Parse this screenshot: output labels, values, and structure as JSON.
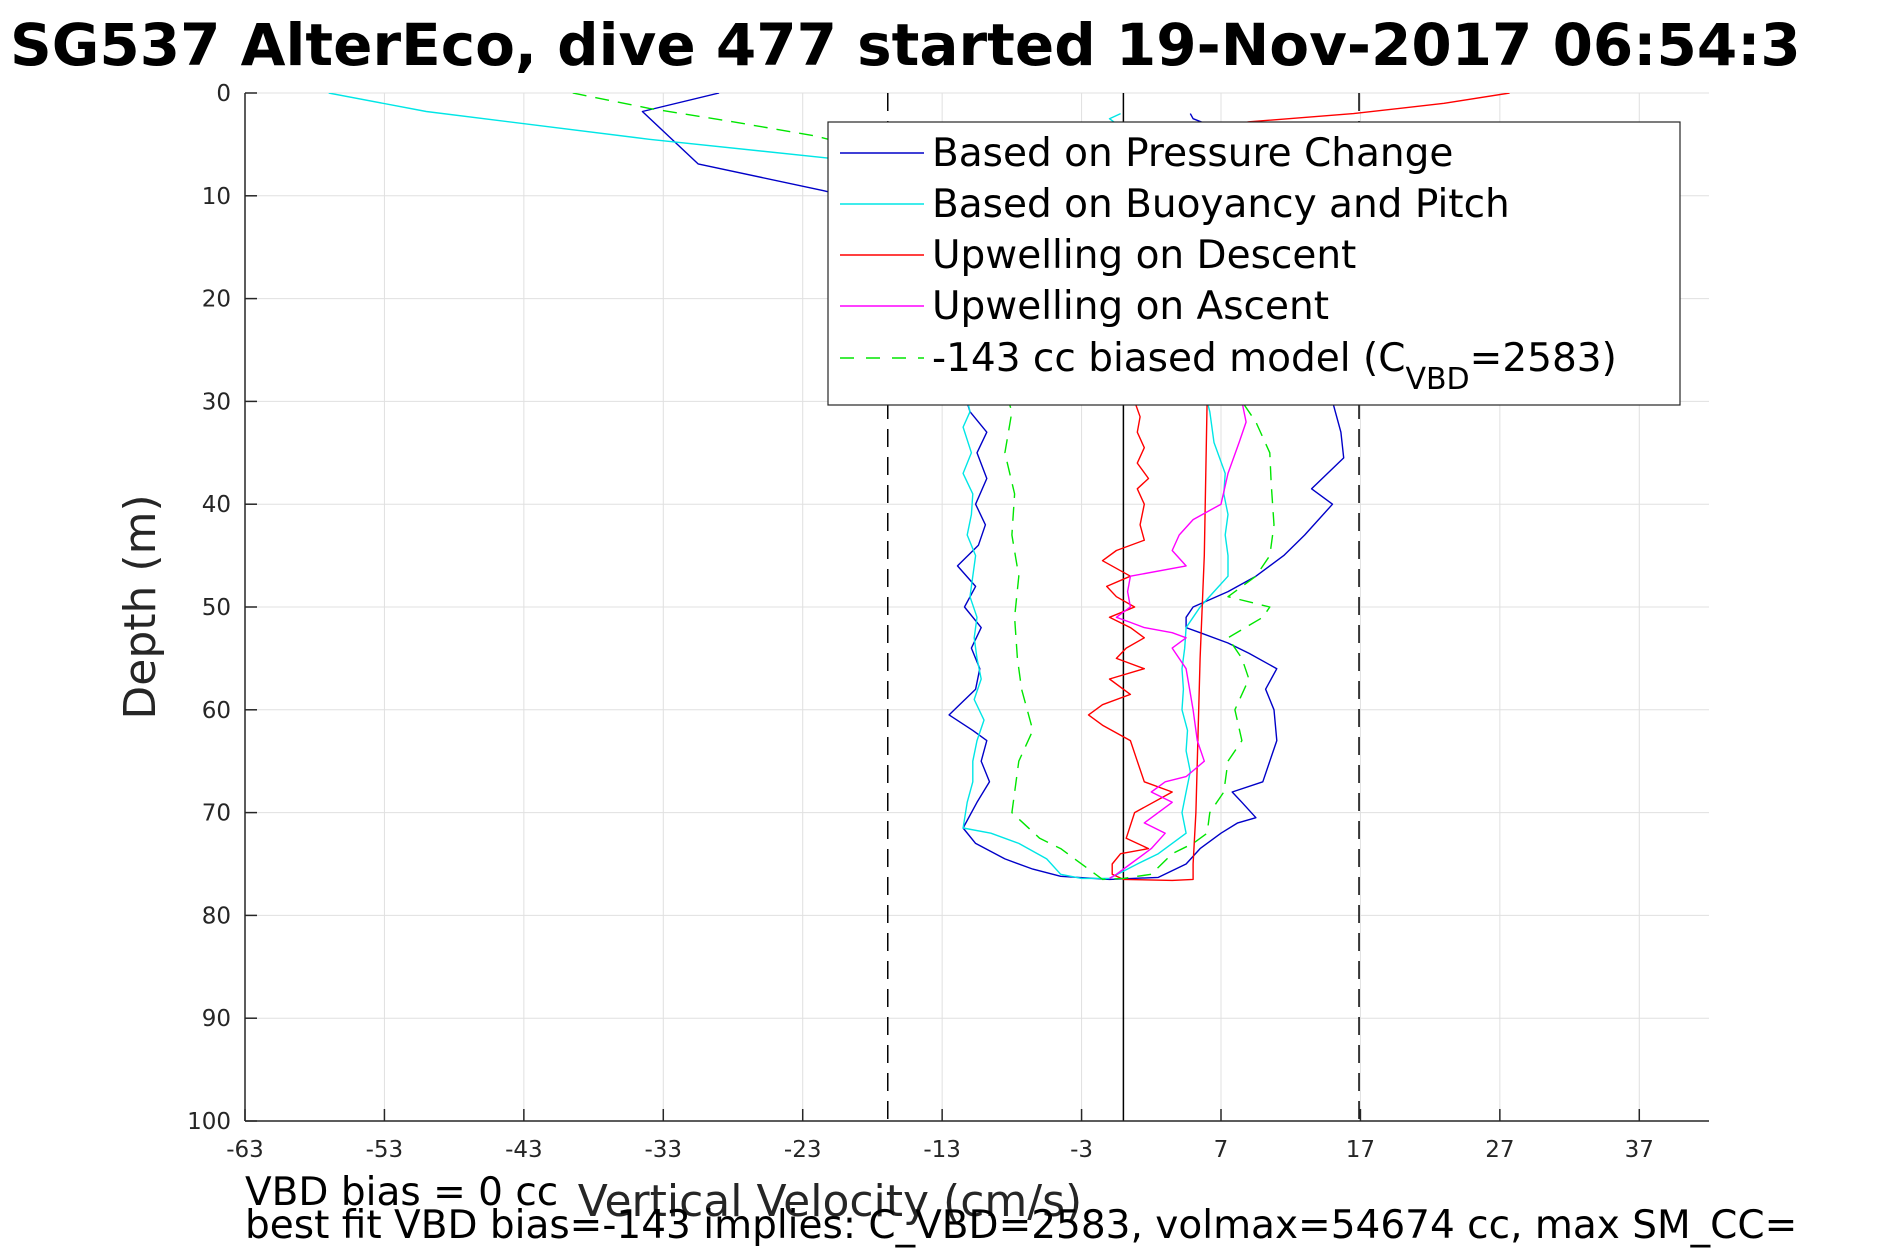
{
  "chart_data": {
    "type": "line",
    "title": "SG537 AlterEco, dive 477 started 19-Nov-2017 06:54:3",
    "xlabel": "Vertical Velocity (cm/s)",
    "ylabel": "Depth (m)",
    "xlim": [
      -63,
      42
    ],
    "ylim": [
      0,
      100
    ],
    "y_reversed": true,
    "grid": true,
    "legend_position": "top-right",
    "xticks": [
      -63,
      -53,
      -43,
      -33,
      -23,
      -13,
      -3,
      7,
      17,
      27,
      37
    ],
    "yticks": [
      0,
      10,
      20,
      30,
      40,
      50,
      60,
      70,
      80,
      90,
      100
    ],
    "reference_lines": [
      {
        "x": -16.9,
        "style": "dashed",
        "color": "#000000"
      },
      {
        "x": 0.0,
        "style": "solid",
        "color": "#000000"
      },
      {
        "x": 16.9,
        "style": "dashed",
        "color": "#000000"
      }
    ],
    "series": [
      {
        "name": "Based on Pressure Change",
        "color": "#0000c8",
        "dash": false,
        "points": [
          [
            -29.0,
            0
          ],
          [
            -34.5,
            1.8
          ],
          [
            -30.5,
            6.9
          ],
          [
            -21.5,
            9.5
          ],
          [
            -15.5,
            11.5
          ],
          [
            -11.0,
            31.0
          ],
          [
            -9.8,
            33.0
          ],
          [
            -10.5,
            35.0
          ],
          [
            -9.8,
            37.5
          ],
          [
            -10.6,
            40.0
          ],
          [
            -9.9,
            42.0
          ],
          [
            -10.4,
            44.0
          ],
          [
            -11.9,
            46.0
          ],
          [
            -10.6,
            48.0
          ],
          [
            -11.4,
            50.0
          ],
          [
            -10.2,
            52.0
          ],
          [
            -10.9,
            54.0
          ],
          [
            -10.3,
            56.0
          ],
          [
            -10.6,
            58.0
          ],
          [
            -12.5,
            60.5
          ],
          [
            -10.8,
            62.0
          ],
          [
            -9.8,
            63.0
          ],
          [
            -10.2,
            65.0
          ],
          [
            -9.6,
            67.0
          ],
          [
            -10.5,
            69.0
          ],
          [
            -11.5,
            71.5
          ],
          [
            -10.6,
            73.0
          ],
          [
            -8.5,
            74.5
          ],
          [
            -6.5,
            75.5
          ],
          [
            -4.5,
            76.2
          ],
          [
            -1.0,
            76.5
          ],
          [
            2.5,
            76.3
          ],
          [
            4.5,
            75.0
          ],
          [
            5.5,
            73.5
          ],
          [
            7.0,
            72.0
          ],
          [
            8.2,
            71.0
          ],
          [
            9.5,
            70.5
          ],
          [
            8.5,
            69.0
          ],
          [
            7.8,
            68.0
          ],
          [
            10.0,
            67.0
          ],
          [
            10.5,
            65.0
          ],
          [
            11.0,
            63.0
          ],
          [
            10.8,
            60.0
          ],
          [
            10.2,
            58.0
          ],
          [
            11.0,
            56.0
          ],
          [
            9.0,
            54.5
          ],
          [
            7.5,
            53.5
          ],
          [
            5.5,
            52.5
          ],
          [
            4.5,
            52.0
          ],
          [
            4.5,
            51.0
          ],
          [
            5.0,
            50.0
          ],
          [
            7.5,
            48.5
          ],
          [
            9.5,
            47.0
          ],
          [
            11.5,
            45.0
          ],
          [
            13.0,
            43.0
          ],
          [
            15.0,
            40.0
          ],
          [
            13.5,
            38.5
          ],
          [
            15.8,
            35.5
          ],
          [
            15.6,
            33.0
          ],
          [
            15.0,
            30.0
          ],
          [
            14.5,
            20.0
          ],
          [
            11.5,
            6.0
          ],
          [
            5.0,
            2.5
          ],
          [
            4.8,
            2.0
          ]
        ]
      },
      {
        "name": "Based on Buoyancy and Pitch",
        "color": "#00e6e6",
        "dash": false,
        "points": [
          [
            -57.0,
            0
          ],
          [
            -50.0,
            1.8
          ],
          [
            -34.0,
            4.5
          ],
          [
            -20.0,
            6.5
          ],
          [
            -14.5,
            11.0
          ],
          [
            -11.0,
            31.0
          ],
          [
            -11.5,
            32.5
          ],
          [
            -10.9,
            35.0
          ],
          [
            -11.5,
            37.0
          ],
          [
            -10.8,
            39.0
          ],
          [
            -10.9,
            41.0
          ],
          [
            -11.2,
            43.0
          ],
          [
            -10.6,
            45.0
          ],
          [
            -10.8,
            47.0
          ],
          [
            -11.0,
            49.0
          ],
          [
            -10.5,
            51.0
          ],
          [
            -10.7,
            53.0
          ],
          [
            -10.5,
            55.0
          ],
          [
            -10.2,
            57.0
          ],
          [
            -10.7,
            59.0
          ],
          [
            -10.0,
            61.0
          ],
          [
            -10.5,
            63.0
          ],
          [
            -10.8,
            65.0
          ],
          [
            -10.8,
            67.0
          ],
          [
            -11.2,
            69.0
          ],
          [
            -11.5,
            71.5
          ],
          [
            -9.5,
            72.0
          ],
          [
            -7.5,
            73.0
          ],
          [
            -5.5,
            74.5
          ],
          [
            -4.5,
            76.0
          ],
          [
            -3.0,
            76.4
          ],
          [
            -1.0,
            76.4
          ],
          [
            1.0,
            75.0
          ],
          [
            2.5,
            74.0
          ],
          [
            3.5,
            73.0
          ],
          [
            4.5,
            72.0
          ],
          [
            4.2,
            70.0
          ],
          [
            4.5,
            68.0
          ],
          [
            4.8,
            66.0
          ],
          [
            4.5,
            64.0
          ],
          [
            4.6,
            62.0
          ],
          [
            4.2,
            60.0
          ],
          [
            4.3,
            58.0
          ],
          [
            4.2,
            56.0
          ],
          [
            4.4,
            54.0
          ],
          [
            4.5,
            52.0
          ],
          [
            5.0,
            51.0
          ],
          [
            5.5,
            50.0
          ],
          [
            6.5,
            48.5
          ],
          [
            7.5,
            47.0
          ],
          [
            7.5,
            45.0
          ],
          [
            7.3,
            43.0
          ],
          [
            7.5,
            41.0
          ],
          [
            7.2,
            39.0
          ],
          [
            7.3,
            37.0
          ],
          [
            6.5,
            34.0
          ],
          [
            6.2,
            31.0
          ],
          [
            6.0,
            30.0
          ],
          [
            5.0,
            20.0
          ],
          [
            2.5,
            10.0
          ],
          [
            0.0,
            3.5
          ],
          [
            -1.0,
            2.5
          ],
          [
            -0.2,
            2.0
          ]
        ]
      },
      {
        "name": "Upwelling on Descent",
        "color": "#ff0000",
        "dash": false,
        "points": [
          [
            27.7,
            0
          ],
          [
            23.0,
            1.0
          ],
          [
            16.5,
            2.0
          ],
          [
            9.0,
            2.8
          ],
          [
            6.4,
            3.5
          ],
          [
            6.0,
            30.0
          ],
          [
            5.8,
            45.0
          ],
          [
            5.5,
            55.0
          ],
          [
            5.3,
            65.0
          ],
          [
            5.2,
            70.0
          ],
          [
            5.0,
            75.0
          ],
          [
            5.0,
            76.5
          ],
          [
            3.5,
            76.6
          ],
          [
            0.0,
            76.5
          ],
          [
            -0.8,
            76.0
          ],
          [
            -0.8,
            75.0
          ],
          [
            -0.2,
            74.0
          ],
          [
            1.8,
            73.5
          ],
          [
            0.2,
            72.5
          ],
          [
            0.8,
            70.0
          ],
          [
            3.5,
            68.0
          ],
          [
            1.5,
            67.0
          ],
          [
            1.0,
            65.0
          ],
          [
            0.5,
            63.0
          ],
          [
            -1.5,
            61.5
          ],
          [
            -2.5,
            60.5
          ],
          [
            -1.5,
            59.5
          ],
          [
            0.5,
            58.5
          ],
          [
            -1.0,
            57.0
          ],
          [
            1.5,
            56.0
          ],
          [
            -0.5,
            55.0
          ],
          [
            0.2,
            54.0
          ],
          [
            1.5,
            53.0
          ],
          [
            0.5,
            52.0
          ],
          [
            -1.0,
            51.0
          ],
          [
            0.8,
            50.0
          ],
          [
            -0.5,
            49.0
          ],
          [
            -1.2,
            48.0
          ],
          [
            0.5,
            47.0
          ],
          [
            -1.5,
            45.5
          ],
          [
            -0.5,
            44.5
          ],
          [
            1.5,
            43.5
          ],
          [
            1.2,
            42.0
          ],
          [
            1.5,
            40.0
          ],
          [
            1.0,
            38.5
          ],
          [
            1.8,
            37.5
          ],
          [
            1.0,
            36.0
          ],
          [
            1.5,
            34.5
          ],
          [
            1.0,
            33.0
          ],
          [
            1.2,
            31.5
          ],
          [
            0.8,
            30.0
          ]
        ]
      },
      {
        "name": "Upwelling on Ascent",
        "color": "#ff00ff",
        "dash": false,
        "points": [
          [
            8.5,
            30.0
          ],
          [
            8.8,
            32.0
          ],
          [
            8.3,
            34.0
          ],
          [
            7.5,
            37.0
          ],
          [
            7.0,
            40.0
          ],
          [
            5.0,
            41.5
          ],
          [
            4.0,
            43.0
          ],
          [
            3.5,
            44.5
          ],
          [
            4.5,
            46.0
          ],
          [
            0.5,
            47.0
          ],
          [
            0.3,
            48.5
          ],
          [
            0.5,
            50.0
          ],
          [
            0.0,
            50.5
          ],
          [
            -0.5,
            51.0
          ],
          [
            0.5,
            51.5
          ],
          [
            1.5,
            52.0
          ],
          [
            3.5,
            52.5
          ],
          [
            4.5,
            53.0
          ],
          [
            3.5,
            54.0
          ],
          [
            4.5,
            56.0
          ],
          [
            5.0,
            60.0
          ],
          [
            5.3,
            63.0
          ],
          [
            5.8,
            65.0
          ],
          [
            4.5,
            66.5
          ],
          [
            3.0,
            67.0
          ],
          [
            2.0,
            68.0
          ],
          [
            3.5,
            69.0
          ],
          [
            2.5,
            70.0
          ],
          [
            1.5,
            71.0
          ],
          [
            3.0,
            72.0
          ],
          [
            2.0,
            73.5
          ],
          [
            0.5,
            75.0
          ],
          [
            -0.5,
            76.0
          ],
          [
            -1.0,
            76.4
          ]
        ]
      },
      {
        "name": "-143 cc biased model (C",
        "name_sub": "VBD",
        "name_tail": "=2583)",
        "color": "#00e600",
        "dash": true,
        "points": [
          [
            -39.5,
            0
          ],
          [
            -34.0,
            1.5
          ],
          [
            -28.0,
            2.8
          ],
          [
            -22.0,
            4.2
          ],
          [
            -17.0,
            6.0
          ],
          [
            -13.0,
            10.0
          ],
          [
            -8.0,
            31.0
          ],
          [
            -8.5,
            35.0
          ],
          [
            -7.8,
            39.0
          ],
          [
            -8.0,
            43.0
          ],
          [
            -7.5,
            47.0
          ],
          [
            -7.8,
            51.0
          ],
          [
            -7.6,
            55.0
          ],
          [
            -7.3,
            58.0
          ],
          [
            -6.5,
            62.0
          ],
          [
            -7.5,
            65.0
          ],
          [
            -8.0,
            70.0
          ],
          [
            -6.0,
            72.5
          ],
          [
            -4.5,
            73.5
          ],
          [
            -3.5,
            74.5
          ],
          [
            -2.5,
            75.5
          ],
          [
            -1.5,
            76.5
          ],
          [
            0.0,
            76.4
          ],
          [
            2.0,
            76.0
          ],
          [
            3.5,
            74.0
          ],
          [
            5.0,
            73.0
          ],
          [
            6.0,
            72.0
          ],
          [
            6.2,
            70.0
          ],
          [
            7.2,
            68.0
          ],
          [
            7.5,
            65.0
          ],
          [
            8.5,
            63.0
          ],
          [
            8.0,
            60.0
          ],
          [
            9.0,
            57.0
          ],
          [
            8.5,
            55.0
          ],
          [
            7.5,
            53.0
          ],
          [
            10.0,
            51.0
          ],
          [
            10.5,
            50.0
          ],
          [
            7.5,
            49.0
          ],
          [
            9.5,
            47.0
          ],
          [
            10.5,
            45.0
          ],
          [
            10.8,
            42.0
          ],
          [
            10.6,
            38.0
          ],
          [
            10.5,
            35.0
          ],
          [
            9.5,
            32.0
          ],
          [
            8.5,
            30.0
          ]
        ]
      }
    ]
  },
  "footer": {
    "line1": "VBD bias = 0 cc",
    "line2": "best fit VBD bias=-143 implies: C_VBD=2583, volmax=54674 cc, max SM_CC="
  }
}
